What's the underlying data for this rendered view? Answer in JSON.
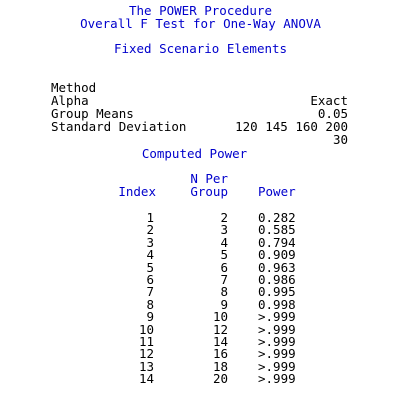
{
  "header": {
    "title": "The POWER Procedure",
    "subtitle": "Overall F Test for One-Way ANOVA"
  },
  "fixed": {
    "heading": "Fixed Scenario Elements",
    "rows": [
      {
        "label": "Method",
        "value": "Exact"
      },
      {
        "label": "Alpha",
        "value": "0.05"
      },
      {
        "label": "Group Means",
        "value": "120 145 160 200"
      },
      {
        "label": "Standard Deviation",
        "value": "30"
      }
    ]
  },
  "computed": {
    "heading": "Computed Power",
    "col_index": "Index",
    "col_npergroup_line1": "N Per",
    "col_npergroup_line2": "Group",
    "col_power": "Power",
    "rows": [
      {
        "index": "1",
        "n": "2",
        "power": "0.282"
      },
      {
        "index": "2",
        "n": "3",
        "power": "0.585"
      },
      {
        "index": "3",
        "n": "4",
        "power": "0.794"
      },
      {
        "index": "4",
        "n": "5",
        "power": "0.909"
      },
      {
        "index": "5",
        "n": "6",
        "power": "0.963"
      },
      {
        "index": "6",
        "n": "7",
        "power": "0.986"
      },
      {
        "index": "7",
        "n": "8",
        "power": "0.995"
      },
      {
        "index": "8",
        "n": "9",
        "power": "0.998"
      },
      {
        "index": "9",
        "n": "10",
        "power": ">.999"
      },
      {
        "index": "10",
        "n": "12",
        "power": ">.999"
      },
      {
        "index": "11",
        "n": "14",
        "power": ">.999"
      },
      {
        "index": "12",
        "n": "16",
        "power": ">.999"
      },
      {
        "index": "13",
        "n": "18",
        "power": ">.999"
      },
      {
        "index": "14",
        "n": "20",
        "power": ">.999"
      }
    ]
  }
}
